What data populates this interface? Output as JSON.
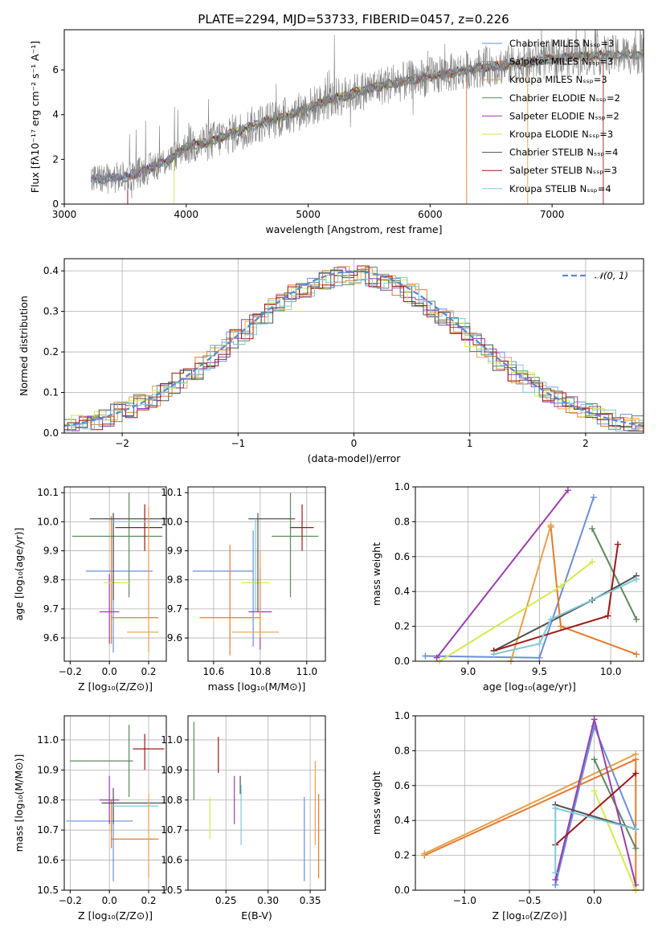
{
  "figure": {
    "title": "PLATE=2294, MJD=53733, FIBERID=0457, z=0.226"
  },
  "models": [
    {
      "name": "Chabrier MILES",
      "nssp": "Nₛₛₚ=3",
      "color": "#6a8fd8"
    },
    {
      "name": "Salpeter MILES",
      "nssp": "Nₛₛₚ=3",
      "color": "#e87a2a"
    },
    {
      "name": "Kroupa MILES",
      "nssp": "Nₛₛₚ=3",
      "color": "#e8a04a"
    },
    {
      "name": "Chabrier ELODIE",
      "nssp": "Nₛₛₚ=2",
      "color": "#5c8a5c"
    },
    {
      "name": "Salpeter ELODIE",
      "nssp": "Nₛₛₚ=2",
      "color": "#9b3db0"
    },
    {
      "name": "Kroupa ELODIE",
      "nssp": "Nₛₛₚ=3",
      "color": "#d4ea50"
    },
    {
      "name": "Chabrier STELIB",
      "nssp": "Nₛₛₚ=4",
      "color": "#505050"
    },
    {
      "name": "Salpeter STELIB",
      "nssp": "Nₛₛₚ=3",
      "color": "#a01818"
    },
    {
      "name": "Kroupa STELIB",
      "nssp": "Nₛₛₚ=4",
      "color": "#80c8d8"
    }
  ],
  "chart_data": [
    {
      "id": "spectrum",
      "type": "line",
      "xlabel": "wavelength [Angstrom, rest frame]",
      "ylabel": "Flux [fλ10⁻¹⁷ erg cm⁻² s⁻¹ A⁻¹]",
      "xlim": [
        3000,
        7750
      ],
      "ylim": [
        0,
        7.8
      ],
      "xticks": [
        3000,
        4000,
        5000,
        6000,
        7000
      ],
      "yticks": [
        0,
        2,
        4,
        6
      ],
      "data_color": "#808080",
      "continuum": {
        "x": [
          3220,
          3500,
          3700,
          3900,
          4000,
          4200,
          4400,
          4600,
          4800,
          5000,
          5200,
          5400,
          5600,
          5800,
          6000,
          6200,
          6400,
          6600,
          6800,
          7000,
          7200,
          7400,
          7750
        ],
        "y": [
          1.1,
          1.2,
          1.6,
          2.1,
          2.6,
          2.8,
          3.2,
          3.6,
          3.9,
          4.3,
          4.7,
          5.0,
          5.3,
          5.5,
          5.7,
          5.9,
          6.1,
          6.2,
          6.35,
          6.5,
          6.6,
          6.65,
          6.7
        ]
      }
    },
    {
      "id": "residuals",
      "type": "histogram",
      "xlabel": "(data-model)/error",
      "ylabel": "Normed distribution",
      "xlim": [
        -2.5,
        2.5
      ],
      "ylim": [
        0,
        0.43
      ],
      "xticks": [
        -2,
        -1,
        0,
        1,
        2
      ],
      "yticks": [
        0.0,
        0.1,
        0.2,
        0.3,
        0.4
      ],
      "bin_width": 0.1,
      "reference": {
        "label": "𝒩(0, 1)",
        "mean": 0,
        "sigma": 1,
        "color": "#5b87d0"
      }
    },
    {
      "id": "age-vs-Z",
      "type": "errorbar",
      "xlabel": "Z [log₁₀(Z/Z⊙)]",
      "ylabel": "age  [log₁₀(age/yr)]",
      "xlim": [
        -0.23,
        0.29
      ],
      "ylim": [
        9.52,
        10.12
      ],
      "xticks": [
        -0.2,
        0.0,
        0.2
      ],
      "yticks": [
        9.6,
        9.7,
        9.8,
        9.9,
        10.0,
        10.1
      ],
      "points": [
        {
          "model": 0,
          "x": 0.02,
          "xerr": 0.02,
          "y": 9.79,
          "yerr": 0.24
        },
        {
          "model": 0,
          "x": 0.05,
          "xerr": 0.17,
          "y": 9.83,
          "yerr": 0.0
        },
        {
          "model": 1,
          "x": 0.13,
          "xerr": 0.12,
          "y": 9.67,
          "yerr": 0.0
        },
        {
          "model": 1,
          "x": 0.01,
          "xerr": 0.0,
          "y": 9.8,
          "yerr": 0.22
        },
        {
          "model": 3,
          "x": 0.04,
          "xerr": 0.23,
          "y": 9.95,
          "yerr": 0.0
        },
        {
          "model": 3,
          "x": 0.1,
          "xerr": 0.0,
          "y": 9.92,
          "yerr": 0.18
        },
        {
          "model": 4,
          "x": 0.0,
          "xerr": 0.05,
          "y": 9.69,
          "yerr": 0.0
        },
        {
          "model": 4,
          "x": 0.0,
          "xerr": 0.0,
          "y": 9.7,
          "yerr": 0.12
        },
        {
          "model": 5,
          "x": 0.04,
          "xerr": 0.07,
          "y": 9.79,
          "yerr": 0.0
        },
        {
          "model": 6,
          "x": 0.1,
          "xerr": 0.2,
          "y": 10.01,
          "yerr": 0.0
        },
        {
          "model": 6,
          "x": 0.02,
          "xerr": 0.0,
          "y": 9.88,
          "yerr": 0.15
        },
        {
          "model": 7,
          "x": 0.15,
          "xerr": 0.12,
          "y": 9.98,
          "yerr": 0.0
        },
        {
          "model": 7,
          "x": 0.18,
          "xerr": 0.0,
          "y": 9.98,
          "yerr": 0.08
        },
        {
          "model": 8,
          "x": 0.13,
          "xerr": 0.12,
          "y": 10.0,
          "yerr": 0.0
        },
        {
          "model": 2,
          "x": 0.2,
          "xerr": 0.0,
          "y": 9.8,
          "yerr": 0.25
        },
        {
          "model": 2,
          "x": 0.17,
          "xerr": 0.08,
          "y": 9.62,
          "yerr": 0.0
        }
      ]
    },
    {
      "id": "age-vs-mass",
      "type": "errorbar",
      "xlabel": "mass [log₁₀(M/M⊙)]",
      "ylabel": "",
      "xlim": [
        10.49,
        11.08
      ],
      "ylim": [
        9.52,
        10.12
      ],
      "xticks": [
        10.6,
        10.8,
        11.0
      ],
      "yticks": [
        9.6,
        9.7,
        9.8,
        9.9,
        10.0,
        10.1
      ],
      "points": [
        {
          "model": 0,
          "x": 10.64,
          "xerr": 0.13,
          "y": 9.83,
          "yerr": 0.0
        },
        {
          "model": 0,
          "x": 10.77,
          "xerr": 0.0,
          "y": 9.77,
          "yerr": 0.2
        },
        {
          "model": 1,
          "x": 10.67,
          "xerr": 0.13,
          "y": 9.67,
          "yerr": 0.0
        },
        {
          "model": 1,
          "x": 10.67,
          "xerr": 0.0,
          "y": 9.73,
          "yerr": 0.19
        },
        {
          "model": 3,
          "x": 10.95,
          "xerr": 0.1,
          "y": 9.95,
          "yerr": 0.0
        },
        {
          "model": 3,
          "x": 10.93,
          "xerr": 0.0,
          "y": 9.92,
          "yerr": 0.18
        },
        {
          "model": 4,
          "x": 10.8,
          "xerr": 0.05,
          "y": 9.69,
          "yerr": 0.0
        },
        {
          "model": 4,
          "x": 10.8,
          "xerr": 0.0,
          "y": 9.7,
          "yerr": 0.14
        },
        {
          "model": 5,
          "x": 10.78,
          "xerr": 0.06,
          "y": 9.79,
          "yerr": 0.0
        },
        {
          "model": 6,
          "x": 10.85,
          "xerr": 0.1,
          "y": 10.01,
          "yerr": 0.0
        },
        {
          "model": 6,
          "x": 10.79,
          "xerr": 0.0,
          "y": 9.86,
          "yerr": 0.17
        },
        {
          "model": 7,
          "x": 10.98,
          "xerr": 0.05,
          "y": 9.98,
          "yerr": 0.0
        },
        {
          "model": 7,
          "x": 10.98,
          "xerr": 0.0,
          "y": 9.98,
          "yerr": 0.08
        },
        {
          "model": 8,
          "x": 10.78,
          "xerr": 0.0,
          "y": 9.85,
          "yerr": 0.16
        },
        {
          "model": 2,
          "x": 10.78,
          "xerr": 0.1,
          "y": 9.62,
          "yerr": 0.0
        },
        {
          "model": 2,
          "x": 10.8,
          "xerr": 0.0,
          "y": 9.75,
          "yerr": 0.15
        }
      ]
    },
    {
      "id": "weight-vs-age",
      "type": "line",
      "xlabel": "age  [log₁₀(age/yr)]",
      "ylabel": "mass weight",
      "xlim": [
        8.63,
        10.23
      ],
      "ylim": [
        0,
        1.0
      ],
      "xticks": [
        9.0,
        9.5,
        10.0
      ],
      "yticks": [
        0.0,
        0.2,
        0.4,
        0.6,
        0.8,
        1.0
      ],
      "series": [
        {
          "model": 0,
          "x": [
            8.7,
            9.5,
            9.88
          ],
          "y": [
            0.03,
            0.02,
            0.94
          ]
        },
        {
          "model": 1,
          "x": [
            9.58,
            9.65,
            10.18
          ],
          "y": [
            0.77,
            0.2,
            0.04
          ]
        },
        {
          "model": 2,
          "x": [
            9.3,
            9.58
          ],
          "y": [
            0.0,
            0.78
          ]
        },
        {
          "model": 3,
          "x": [
            9.87,
            10.18
          ],
          "y": [
            0.76,
            0.24
          ]
        },
        {
          "model": 4,
          "x": [
            8.78,
            9.7
          ],
          "y": [
            0.02,
            0.98
          ]
        },
        {
          "model": 5,
          "x": [
            8.8,
            9.65,
            9.87
          ],
          "y": [
            0.0,
            0.43,
            0.57
          ]
        },
        {
          "model": 6,
          "x": [
            9.18,
            9.87,
            10.18
          ],
          "y": [
            0.06,
            0.35,
            0.49
          ]
        },
        {
          "model": 7,
          "x": [
            9.18,
            9.98,
            10.05
          ],
          "y": [
            0.06,
            0.26,
            0.67
          ]
        },
        {
          "model": 8,
          "x": [
            9.18,
            9.5,
            9.58,
            10.18
          ],
          "y": [
            0.04,
            0.1,
            0.24,
            0.47
          ]
        }
      ]
    },
    {
      "id": "mass-vs-Z",
      "type": "errorbar",
      "xlabel": "Z [log₁₀(Z/Z⊙)]",
      "ylabel": "mass [log₁₀(M/M⊙)]",
      "xlim": [
        -0.23,
        0.29
      ],
      "ylim": [
        10.5,
        11.08
      ],
      "xticks": [
        -0.2,
        0.0,
        0.2
      ],
      "yticks": [
        10.5,
        10.6,
        10.7,
        10.8,
        10.9,
        11.0
      ],
      "points": [
        {
          "model": 0,
          "x": 0.02,
          "xerr": 0.0,
          "y": 10.67,
          "yerr": 0.14
        },
        {
          "model": 0,
          "x": -0.05,
          "xerr": 0.17,
          "y": 10.73,
          "yerr": 0.0
        },
        {
          "model": 1,
          "x": 0.13,
          "xerr": 0.12,
          "y": 10.67,
          "yerr": 0.0
        },
        {
          "model": 1,
          "x": 0.01,
          "xerr": 0.0,
          "y": 10.72,
          "yerr": 0.08
        },
        {
          "model": 3,
          "x": -0.04,
          "xerr": 0.16,
          "y": 10.93,
          "yerr": 0.0
        },
        {
          "model": 3,
          "x": 0.1,
          "xerr": 0.0,
          "y": 10.93,
          "yerr": 0.12
        },
        {
          "model": 4,
          "x": 0.0,
          "xerr": 0.05,
          "y": 10.8,
          "yerr": 0.0
        },
        {
          "model": 4,
          "x": 0.0,
          "xerr": 0.0,
          "y": 10.8,
          "yerr": 0.08
        },
        {
          "model": 5,
          "x": 0.04,
          "xerr": 0.07,
          "y": 10.79,
          "yerr": 0.0
        },
        {
          "model": 6,
          "x": 0.12,
          "xerr": 0.16,
          "y": 10.79,
          "yerr": 0.0
        },
        {
          "model": 6,
          "x": 0.02,
          "xerr": 0.0,
          "y": 10.78,
          "yerr": 0.06
        },
        {
          "model": 7,
          "x": 0.2,
          "xerr": 0.08,
          "y": 10.97,
          "yerr": 0.0
        },
        {
          "model": 7,
          "x": 0.18,
          "xerr": 0.0,
          "y": 10.96,
          "yerr": 0.06
        },
        {
          "model": 8,
          "x": 0.13,
          "xerr": 0.12,
          "y": 10.78,
          "yerr": 0.0
        },
        {
          "model": 2,
          "x": 0.2,
          "xerr": 0.0,
          "y": 10.68,
          "yerr": 0.14
        }
      ]
    },
    {
      "id": "mass-vs-EBV",
      "type": "errorbar",
      "xlabel": "E(B-V)",
      "ylabel": "",
      "xlim": [
        0.205,
        0.368
      ],
      "ylim": [
        10.5,
        11.08
      ],
      "xticks": [
        0.25,
        0.3,
        0.35
      ],
      "yticks": [
        10.5,
        10.6,
        10.7,
        10.8,
        10.9,
        11.0
      ],
      "points": [
        {
          "model": 3,
          "x": 0.212,
          "xerr": 0.0,
          "y": 10.93,
          "yerr": 0.13
        },
        {
          "model": 5,
          "x": 0.231,
          "xerr": 0.0,
          "y": 10.74,
          "yerr": 0.07
        },
        {
          "model": 7,
          "x": 0.241,
          "xerr": 0.0,
          "y": 10.95,
          "yerr": 0.06
        },
        {
          "model": 4,
          "x": 0.26,
          "xerr": 0.0,
          "y": 10.8,
          "yerr": 0.08
        },
        {
          "model": 6,
          "x": 0.267,
          "xerr": 0.0,
          "y": 10.85,
          "yerr": 0.03
        },
        {
          "model": 8,
          "x": 0.268,
          "xerr": 0.0,
          "y": 10.75,
          "yerr": 0.1
        },
        {
          "model": 0,
          "x": 0.343,
          "xerr": 0.0,
          "y": 10.67,
          "yerr": 0.14
        },
        {
          "model": 2,
          "x": 0.356,
          "xerr": 0.0,
          "y": 10.79,
          "yerr": 0.14
        },
        {
          "model": 1,
          "x": 0.36,
          "xerr": 0.0,
          "y": 10.68,
          "yerr": 0.14
        }
      ]
    },
    {
      "id": "weight-vs-Z",
      "type": "line",
      "xlabel": "Z [log₁₀(Z/Z⊙)]",
      "ylabel": "mass weight",
      "xlim": [
        -1.38,
        0.38
      ],
      "ylim": [
        0,
        1.0
      ],
      "xticks": [
        -1.0,
        -0.5,
        0.0
      ],
      "yticks": [
        0.0,
        0.2,
        0.4,
        0.6,
        0.8,
        1.0
      ],
      "series": [
        {
          "model": 0,
          "x": [
            -0.3,
            0.0,
            0.32
          ],
          "y": [
            0.03,
            0.94,
            0.35
          ]
        },
        {
          "model": 1,
          "x": [
            -1.31,
            0.32,
            0.32
          ],
          "y": [
            0.2,
            0.75,
            0.0
          ]
        },
        {
          "model": 2,
          "x": [
            -1.31,
            0.32
          ],
          "y": [
            0.21,
            0.78
          ]
        },
        {
          "model": 3,
          "x": [
            0.0,
            0.32
          ],
          "y": [
            0.75,
            0.24
          ]
        },
        {
          "model": 4,
          "x": [
            -0.3,
            0.0,
            0.32
          ],
          "y": [
            0.06,
            0.98,
            0.03
          ]
        },
        {
          "model": 5,
          "x": [
            0.0,
            0.32
          ],
          "y": [
            0.57,
            0.0
          ]
        },
        {
          "model": 6,
          "x": [
            -0.3,
            0.32
          ],
          "y": [
            0.49,
            0.35
          ]
        },
        {
          "model": 7,
          "x": [
            -0.3,
            0.32
          ],
          "y": [
            0.26,
            0.67
          ]
        },
        {
          "model": 8,
          "x": [
            -0.3,
            -0.3,
            0.32
          ],
          "y": [
            0.1,
            0.47,
            0.35
          ]
        }
      ]
    }
  ]
}
